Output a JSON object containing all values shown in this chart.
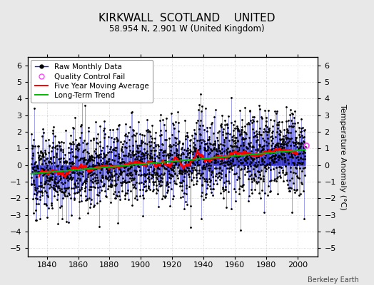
{
  "title": "KIRKWALL  SCOTLAND    UNITED",
  "subtitle": "58.954 N, 2.901 W (United Kingdom)",
  "ylabel": "Temperature Anomaly (°C)",
  "credit": "Berkeley Earth",
  "ylim": [
    -5.5,
    6.5
  ],
  "yticks": [
    -5,
    -4,
    -3,
    -2,
    -1,
    0,
    1,
    2,
    3,
    4,
    5,
    6
  ],
  "xlim": [
    1828,
    2013
  ],
  "xticks": [
    1840,
    1860,
    1880,
    1900,
    1920,
    1940,
    1960,
    1980,
    2000
  ],
  "background_color": "#e8e8e8",
  "plot_bg_color": "#ffffff",
  "raw_color": "#2222cc",
  "raw_dot_color": "#000000",
  "qc_color": "#ff44ff",
  "moving_avg_color": "#ff0000",
  "trend_color": "#00bb00",
  "title_fontsize": 11,
  "subtitle_fontsize": 8.5,
  "ylabel_fontsize": 8,
  "tick_fontsize": 8,
  "legend_fontsize": 7.5,
  "seed": 12345,
  "n_years": 175,
  "start_year": 1830
}
